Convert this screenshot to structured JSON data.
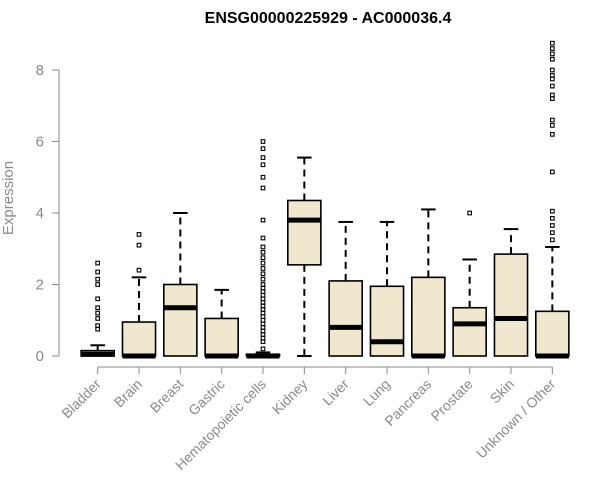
{
  "chart_data": {
    "type": "box",
    "title": "ENSG00000225929 - AC000036.4",
    "ylabel": "Expression",
    "xlabel": "",
    "ylim": [
      -0.2,
      8.85
    ],
    "yticks": [
      0,
      2,
      4,
      6,
      8
    ],
    "grid": false,
    "box_fill": "#efe8ce",
    "box_stroke": "#000000",
    "axis_color": "#8a8a8a",
    "categories": [
      "Bladder",
      "Brain",
      "Breast",
      "Gastric",
      "Hematopoietic cells",
      "Kidney",
      "Liver",
      "Lung",
      "Pancreas",
      "Prostate",
      "Skin",
      "Unknown / Other"
    ],
    "boxes": [
      {
        "category": "Bladder",
        "min": 0,
        "q1": 0,
        "median": 0.05,
        "q3": 0.15,
        "max": 0.3,
        "outliers": [
          0.75,
          0.85,
          1.05,
          1.2,
          1.35,
          1.6,
          2.0,
          2.15,
          2.35,
          2.6
        ]
      },
      {
        "category": "Brain",
        "min": 0,
        "q1": 0,
        "median": 0,
        "q3": 0.95,
        "max": 2.2,
        "outliers": [
          2.4,
          3.1,
          3.4
        ]
      },
      {
        "category": "Breast",
        "min": 0,
        "q1": 0,
        "median": 1.35,
        "q3": 2.0,
        "max": 4.0,
        "outliers": []
      },
      {
        "category": "Gastric",
        "min": 0,
        "q1": 0,
        "median": 0,
        "q3": 1.05,
        "max": 1.85,
        "outliers": []
      },
      {
        "category": "Hematopoietic cells",
        "min": 0,
        "q1": 0,
        "median": 0,
        "q3": 0.05,
        "max": 0.1,
        "outliers": [
          0.2,
          0.4,
          0.5,
          0.6,
          0.7,
          0.8,
          0.9,
          1.0,
          1.1,
          1.2,
          1.3,
          1.4,
          1.5,
          1.6,
          1.7,
          1.8,
          1.9,
          2.0,
          2.15,
          2.3,
          2.45,
          2.6,
          2.75,
          2.9,
          3.05,
          3.3,
          3.8,
          4.7,
          5.0,
          5.35,
          5.55,
          5.8,
          6.0
        ]
      },
      {
        "category": "Kidney",
        "min": 0,
        "q1": 2.55,
        "median": 3.8,
        "q3": 4.35,
        "max": 5.55,
        "outliers": []
      },
      {
        "category": "Liver",
        "min": 0,
        "q1": 0,
        "median": 0.8,
        "q3": 2.1,
        "max": 3.75,
        "outliers": []
      },
      {
        "category": "Lung",
        "min": 0,
        "q1": 0,
        "median": 0.4,
        "q3": 1.95,
        "max": 3.75,
        "outliers": []
      },
      {
        "category": "Pancreas",
        "min": 0,
        "q1": 0,
        "median": 0,
        "q3": 2.2,
        "max": 4.1,
        "outliers": []
      },
      {
        "category": "Prostate",
        "min": 0,
        "q1": 0,
        "median": 0.9,
        "q3": 1.35,
        "max": 2.7,
        "outliers": [
          4.0
        ]
      },
      {
        "category": "Skin",
        "min": 0,
        "q1": 0,
        "median": 1.05,
        "q3": 2.85,
        "max": 3.55,
        "outliers": []
      },
      {
        "category": "Unknown / Other",
        "min": 0,
        "q1": 0,
        "median": 0,
        "q3": 1.25,
        "max": 3.05,
        "outliers": [
          3.25,
          3.45,
          3.65,
          3.85,
          4.05,
          5.15,
          6.2,
          6.45,
          6.6,
          7.2,
          7.3,
          7.55,
          7.75,
          7.85,
          8.0,
          8.3,
          8.45,
          8.6,
          8.75
        ]
      }
    ]
  }
}
